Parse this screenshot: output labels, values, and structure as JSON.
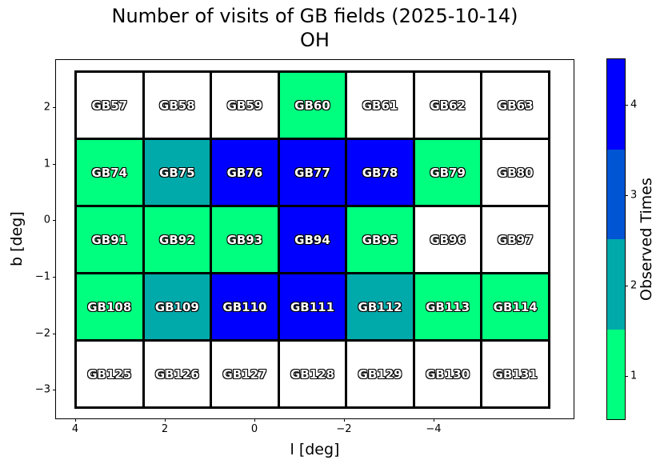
{
  "figure": {
    "title_line1": "Number of visits of GB fields (2025-10-14)",
    "title_line2": "OH"
  },
  "axes": {
    "xlabel": "l [deg]",
    "ylabel": "b [deg]",
    "x_tick_labels": [
      "4",
      "2",
      "0",
      "−2",
      "−4"
    ],
    "y_tick_labels": [
      "2",
      "1",
      "0",
      "−1",
      "−2",
      "−3"
    ]
  },
  "colorbar": {
    "label": "Observed Times",
    "tick_labels_top_to_bottom": [
      "4",
      "3",
      "2",
      "1"
    ],
    "segment_colors_bottom_to_top": [
      "#00FF7F",
      "#00AAAA",
      "#0055D4",
      "#0000FF"
    ]
  },
  "chart_data": {
    "type": "heatmap",
    "title": "Number of visits of GB fields (2025-10-14) OH",
    "xlabel": "l [deg]",
    "ylabel": "b [deg]",
    "x_tick_labels": [
      "4",
      "2",
      "0",
      "−2",
      "−4"
    ],
    "y_tick_labels": [
      "2",
      "1",
      "0",
      "−1",
      "−2",
      "−3"
    ],
    "colorbar_label": "Observed Times",
    "colorbar_ticks": [
      1,
      2,
      3,
      4
    ],
    "value_colors": {
      "0": "#FFFFFF",
      "1": "#00FF7F",
      "2": "#00AAAA",
      "3": "#0055D4",
      "4": "#0000FF"
    },
    "rows": [
      {
        "fields": [
          "GB57",
          "GB58",
          "GB59",
          "GB60",
          "GB61",
          "GB62",
          "GB63"
        ],
        "visits": [
          0,
          0,
          0,
          1,
          0,
          0,
          0
        ]
      },
      {
        "fields": [
          "GB74",
          "GB75",
          "GB76",
          "GB77",
          "GB78",
          "GB79",
          "GB80"
        ],
        "visits": [
          1,
          2,
          4,
          4,
          4,
          1,
          0
        ]
      },
      {
        "fields": [
          "GB91",
          "GB92",
          "GB93",
          "GB94",
          "GB95",
          "GB96",
          "GB97"
        ],
        "visits": [
          1,
          1,
          1,
          4,
          1,
          0,
          0
        ]
      },
      {
        "fields": [
          "GB108",
          "GB109",
          "GB110",
          "GB111",
          "GB112",
          "GB113",
          "GB114"
        ],
        "visits": [
          1,
          2,
          4,
          4,
          2,
          1,
          1
        ]
      },
      {
        "fields": [
          "GB125",
          "GB126",
          "GB127",
          "GB128",
          "GB129",
          "GB130",
          "GB131"
        ],
        "visits": [
          0,
          0,
          0,
          0,
          0,
          0,
          0
        ]
      }
    ]
  }
}
